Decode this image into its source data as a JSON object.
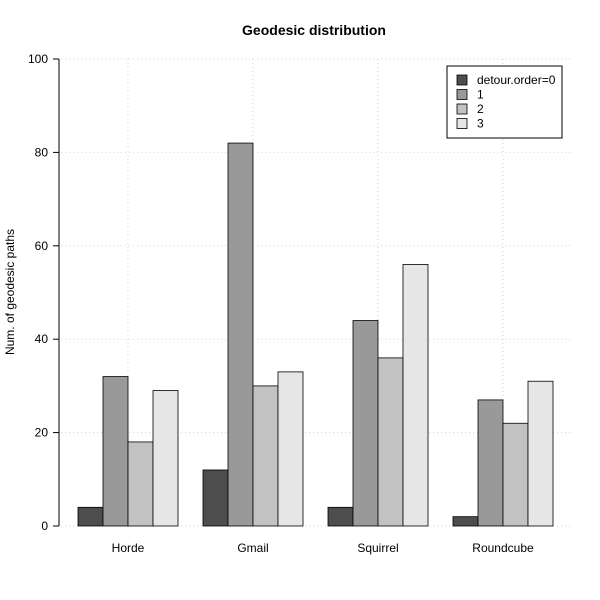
{
  "chart_data": {
    "type": "bar",
    "title": "Geodesic distribution",
    "xlabel": "",
    "ylabel": "Num. of geodesic paths",
    "ylim": [
      0,
      100
    ],
    "yticks": [
      "0",
      "20",
      "40",
      "60",
      "80",
      "100"
    ],
    "grid": true,
    "legend_position": "top-right",
    "categories": [
      "Horde",
      "Gmail",
      "Squirrel",
      "Roundcube"
    ],
    "series": [
      {
        "name": "detour.order=0",
        "color": "#4d4d4d",
        "values": [
          4,
          12,
          4,
          2
        ]
      },
      {
        "name": "1",
        "color": "#999999",
        "values": [
          32,
          82,
          44,
          27
        ]
      },
      {
        "name": "2",
        "color": "#c2c2c2",
        "values": [
          18,
          30,
          36,
          22
        ]
      },
      {
        "name": "3",
        "color": "#e6e6e6",
        "values": [
          29,
          33,
          56,
          31
        ]
      }
    ]
  }
}
